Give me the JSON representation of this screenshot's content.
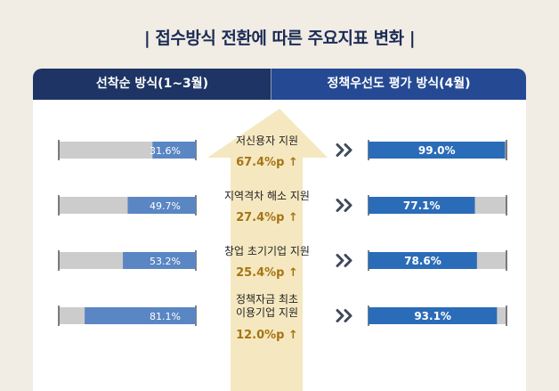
{
  "title": "| 접수방식 전환에 따른 주요지표 변화 |",
  "header_left": "선착순 방식(1~3월)",
  "header_right": "정책우선도 평가 방식(4월)",
  "colors": {
    "bar_left": "#5a86c4",
    "bar_right": "#2b6cb8",
    "bar_track": "#cccccc",
    "arrow_fill": "#f5e8c0",
    "chevron": "#3f4a5a",
    "delta_text": "#a67414"
  },
  "chart_data": {
    "type": "bar",
    "categories": [
      "저신용자 지원",
      "지역격차 해소 지원",
      "창업 초기기업 지원",
      "정책자금 최초\n이용기업 지원"
    ],
    "series": [
      {
        "name": "선착순 방식(1~3월)",
        "values": [
          31.6,
          49.7,
          53.2,
          81.1
        ],
        "labels": [
          "31.6%",
          "49.7%",
          "53.2%",
          "81.1%"
        ]
      },
      {
        "name": "정책우선도 평가 방식(4월)",
        "values": [
          99.0,
          77.1,
          78.6,
          93.1
        ],
        "labels": [
          "99.0%",
          "77.1%",
          "78.6%",
          "93.1%"
        ]
      }
    ],
    "deltas": [
      "67.4%p ↑",
      "27.4%p ↑",
      "25.4%p ↑",
      "12.0%p ↑"
    ],
    "ylim": [
      0,
      100
    ]
  }
}
